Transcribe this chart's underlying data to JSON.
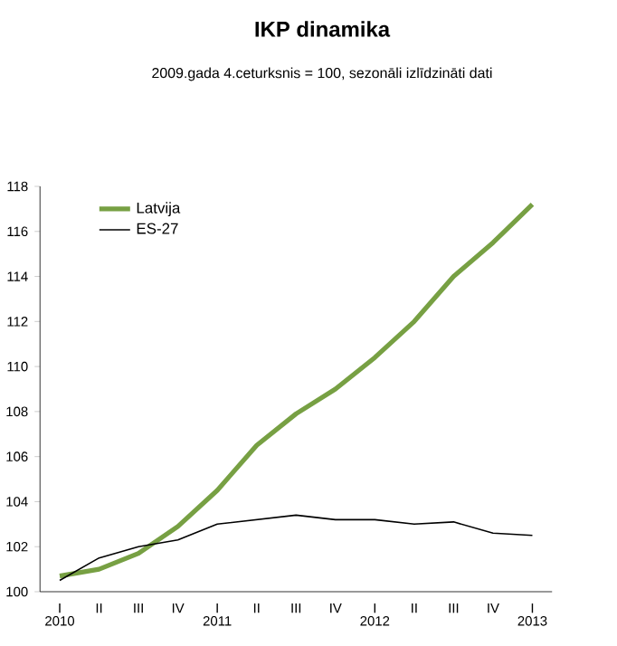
{
  "chart_data": {
    "type": "line",
    "title": "IKP dinamika",
    "subtitle": "2009.gada 4.ceturksnis = 100, sezonāli izlīdzināti dati",
    "categories": [
      "I",
      "II",
      "III",
      "IV",
      "I",
      "II",
      "III",
      "IV",
      "I",
      "II",
      "III",
      "IV",
      "I"
    ],
    "series": [
      {
        "name": "Latvija",
        "color": "#77a043",
        "values": [
          100.7,
          101.0,
          101.7,
          102.9,
          104.5,
          106.5,
          107.9,
          109.0,
          110.4,
          112.0,
          114.0,
          115.5,
          117.2
        ]
      },
      {
        "name": "ES-27",
        "color": "#000000",
        "values": [
          100.5,
          101.5,
          102.0,
          102.3,
          103.0,
          103.2,
          103.4,
          103.2,
          103.2,
          103.0,
          103.1,
          102.6,
          102.5
        ]
      }
    ],
    "annotations": [
      "2010",
      "2011",
      "2012",
      "2013"
    ],
    "ylim": [
      100,
      118
    ],
    "yticks": [
      100,
      102,
      104,
      106,
      108,
      110,
      112,
      114,
      116,
      118
    ],
    "grid": false,
    "legend": "top left",
    "marker": "none",
    "line_style": "solid"
  }
}
